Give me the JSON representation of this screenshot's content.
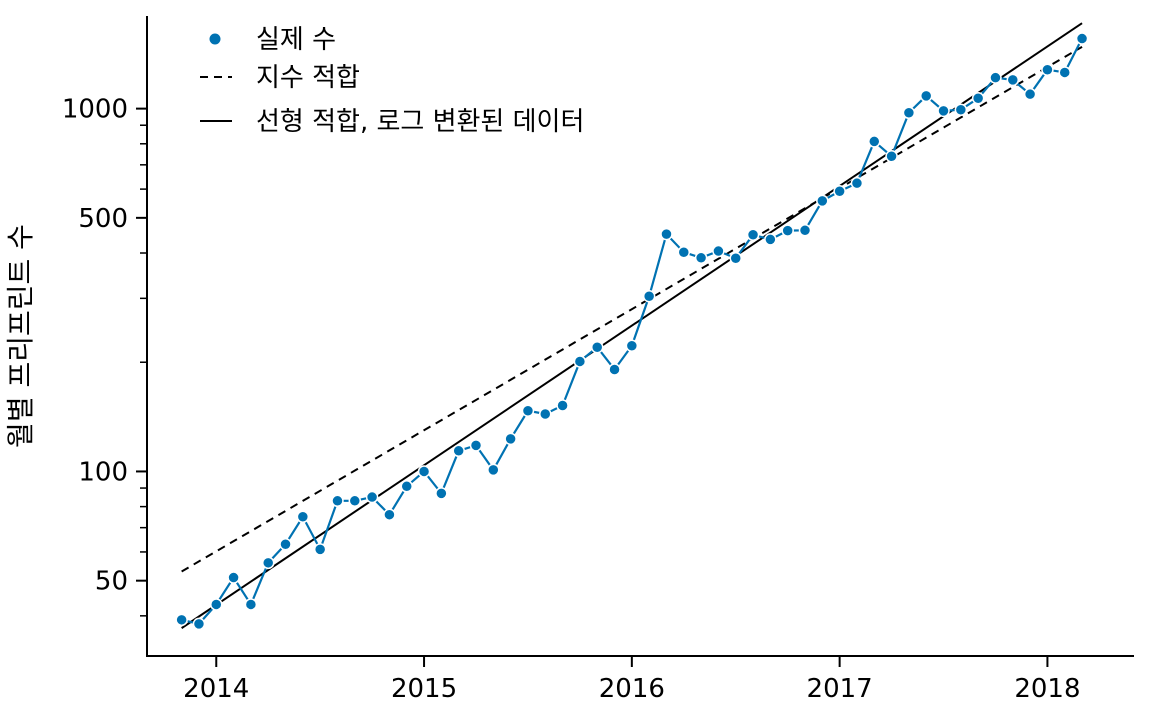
{
  "chart_data": {
    "type": "line",
    "ylabel": "월별 프리프린트 수",
    "yscale": "log",
    "xlim": [
      "2013-09",
      "2018-06"
    ],
    "ylim": [
      31,
      1800
    ],
    "x_ticks": [
      "2014",
      "2015",
      "2016",
      "2017",
      "2018"
    ],
    "y_ticks": [
      "50",
      "100",
      "500",
      "1000"
    ],
    "grid": false,
    "legend_position": "top-left",
    "legend": [
      "실제 수",
      "지수 적합",
      "선형 적합, 로그 변환된 데이터"
    ],
    "colors": {
      "actual": "#0072b2",
      "fit": "#000000"
    },
    "series": [
      {
        "name": "실제 수",
        "style": "markers-with-line",
        "points": [
          [
            "2013-11",
            39
          ],
          [
            "2013-12",
            38
          ],
          [
            "2014-01",
            43
          ],
          [
            "2014-02",
            51
          ],
          [
            "2014-03",
            43
          ],
          [
            "2014-04",
            56
          ],
          [
            "2014-05",
            63
          ],
          [
            "2014-06",
            75
          ],
          [
            "2014-07",
            61
          ],
          [
            "2014-08",
            83
          ],
          [
            "2014-09",
            83
          ],
          [
            "2014-10",
            85
          ],
          [
            "2014-11",
            76
          ],
          [
            "2014-12",
            91
          ],
          [
            "2015-01",
            100
          ],
          [
            "2015-02",
            87
          ],
          [
            "2015-03",
            114
          ],
          [
            "2015-04",
            118
          ],
          [
            "2015-05",
            101
          ],
          [
            "2015-06",
            123
          ],
          [
            "2015-07",
            147
          ],
          [
            "2015-08",
            144
          ],
          [
            "2015-09",
            152
          ],
          [
            "2015-10",
            201
          ],
          [
            "2015-11",
            220
          ],
          [
            "2015-12",
            191
          ],
          [
            "2016-01",
            222
          ],
          [
            "2016-02",
            304
          ],
          [
            "2016-03",
            451
          ],
          [
            "2016-04",
            402
          ],
          [
            "2016-05",
            388
          ],
          [
            "2016-06",
            405
          ],
          [
            "2016-07",
            387
          ],
          [
            "2016-08",
            449
          ],
          [
            "2016-09",
            436
          ],
          [
            "2016-10",
            461
          ],
          [
            "2016-11",
            462
          ],
          [
            "2016-12",
            557
          ],
          [
            "2017-01",
            592
          ],
          [
            "2017-02",
            623
          ],
          [
            "2017-03",
            812
          ],
          [
            "2017-04",
            739
          ],
          [
            "2017-05",
            974
          ],
          [
            "2017-06",
            1084
          ],
          [
            "2017-07",
            986
          ],
          [
            "2017-08",
            993
          ],
          [
            "2017-09",
            1068
          ],
          [
            "2017-10",
            1217
          ],
          [
            "2017-11",
            1200
          ],
          [
            "2017-12",
            1096
          ],
          [
            "2018-01",
            1280
          ],
          [
            "2018-02",
            1258
          ],
          [
            "2018-03",
            1560
          ]
        ]
      },
      {
        "name": "지수 적합",
        "style": "dashed",
        "points": [
          [
            "2013-11",
            53
          ],
          [
            "2018-03",
            1480
          ]
        ]
      },
      {
        "name": "선형 적합, 로그 변환된 데이터",
        "style": "solid",
        "points": [
          [
            "2013-11",
            37
          ],
          [
            "2018-03",
            1720
          ]
        ]
      }
    ]
  }
}
